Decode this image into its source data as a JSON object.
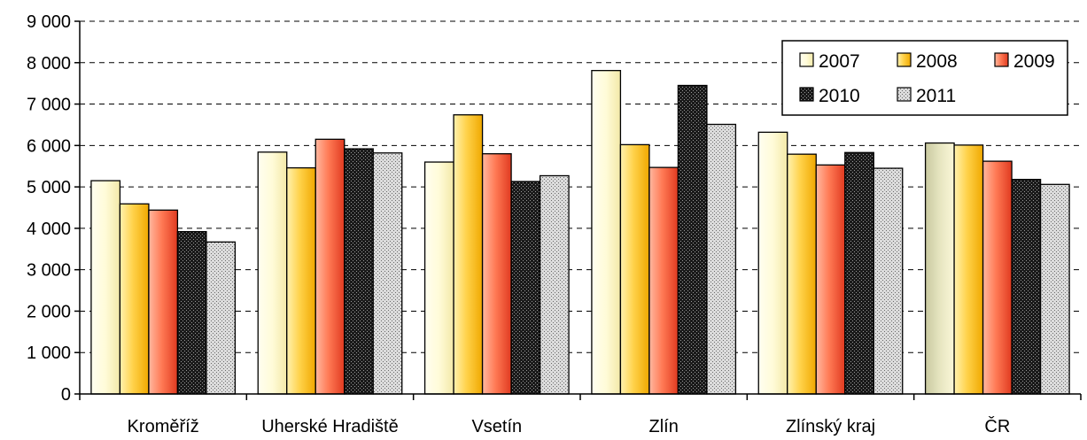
{
  "chart_data": {
    "type": "bar",
    "categories": [
      "Kroměříž",
      "Uherské Hradiště",
      "Vsetín",
      "Zlín",
      "Zlínský kraj",
      "ČR"
    ],
    "series": [
      {
        "name": "2007",
        "values": [
          5150,
          5840,
          5600,
          7810,
          6320,
          6060
        ]
      },
      {
        "name": "2008",
        "values": [
          4590,
          5460,
          6740,
          6020,
          5790,
          6010
        ]
      },
      {
        "name": "2009",
        "values": [
          4440,
          6150,
          5800,
          5470,
          5530,
          5620
        ]
      },
      {
        "name": "2010",
        "values": [
          3920,
          5920,
          5130,
          7450,
          5830,
          5180
        ]
      },
      {
        "name": "2011",
        "values": [
          3670,
          5820,
          5270,
          6510,
          5450,
          5060
        ]
      }
    ],
    "ylim": [
      0,
      9000
    ],
    "yticks": [
      0,
      1000,
      2000,
      3000,
      4000,
      5000,
      6000,
      7000,
      8000,
      9000
    ],
    "ytick_labels": [
      "0",
      "1 000",
      "2 000",
      "3 000",
      "4 000",
      "5 000",
      "6 000",
      "7 000",
      "8 000",
      "9 000"
    ],
    "grid": "horizontal dashed",
    "legend_position": "top-right",
    "title": "",
    "xlabel": "",
    "ylabel": "",
    "colors": {
      "2007": "#fffbd8",
      "2008": "#ffcc44",
      "2009": "#ff6a4a",
      "2010": "#2a2a2a",
      "2011": "#c8c8c8"
    }
  }
}
